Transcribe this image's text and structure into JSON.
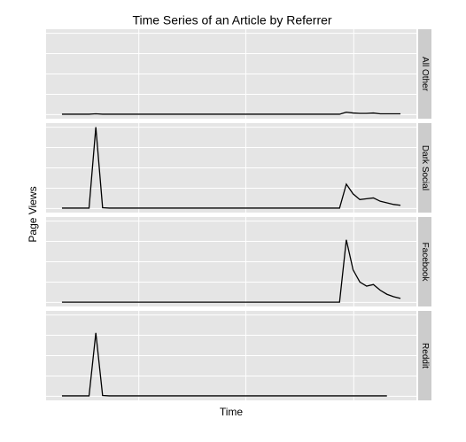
{
  "chart_data": {
    "type": "line",
    "title": "Time Series of an Article by Referrer",
    "x_label": "Time",
    "y_label": "Page Views",
    "facets": true,
    "grid": true,
    "x": [
      0,
      2,
      4,
      6,
      8,
      10,
      12,
      14,
      16,
      18,
      20,
      22,
      24,
      26,
      28,
      30,
      32,
      34,
      36,
      38,
      40,
      42,
      44,
      46,
      48,
      50,
      52,
      54,
      56,
      58,
      60,
      62,
      64,
      66,
      68,
      70,
      72,
      74,
      76,
      78,
      80,
      82,
      84,
      86,
      88,
      90,
      92,
      94,
      96,
      98,
      100
    ],
    "xlim": [
      -4.7,
      104.7
    ],
    "xticks": [
      22.7,
      54.3,
      86.2
    ],
    "ylim": [
      -5,
      105
    ],
    "yticks": [
      0,
      25,
      50,
      75,
      100
    ],
    "series": [
      {
        "name": "All Other",
        "color": "#000000",
        "values": [
          0.5,
          0.5,
          0.5,
          0.5,
          0.5,
          1,
          0.5,
          0.5,
          0.5,
          0.5,
          0.5,
          0.5,
          0.5,
          0.5,
          0.5,
          0.5,
          0.5,
          0.5,
          0.5,
          0.5,
          0.5,
          0.5,
          0.5,
          0.5,
          0.5,
          0.5,
          0.5,
          0.5,
          0.5,
          0.5,
          0.5,
          0.5,
          0.5,
          0.5,
          0.5,
          0.5,
          0.5,
          0.5,
          0.5,
          0.5,
          0.5,
          0.5,
          3,
          2,
          1.5,
          1.5,
          2,
          1,
          1,
          1,
          1
        ]
      },
      {
        "name": "Dark Social",
        "color": "#000000",
        "values": [
          0.5,
          0.5,
          0.5,
          0.5,
          0.5,
          100,
          1,
          0.5,
          0.5,
          0.5,
          0.5,
          0.5,
          0.5,
          0.5,
          0.5,
          0.5,
          0.5,
          0.5,
          0.5,
          0.5,
          0.5,
          0.5,
          0.5,
          0.5,
          0.5,
          0.5,
          0.5,
          0.5,
          0.5,
          0.5,
          0.5,
          0.5,
          0.5,
          0.5,
          0.5,
          0.5,
          0.5,
          0.5,
          0.5,
          0.5,
          0.5,
          0.5,
          30,
          18,
          11,
          12,
          13,
          9,
          7,
          5,
          4
        ]
      },
      {
        "name": "Facebook",
        "color": "#000000",
        "values": [
          0.3,
          0.3,
          0.3,
          0.3,
          0.3,
          0.3,
          0.3,
          0.3,
          0.3,
          0.3,
          0.3,
          0.3,
          0.3,
          0.3,
          0.3,
          0.3,
          0.3,
          0.3,
          0.3,
          0.3,
          0.3,
          0.3,
          0.3,
          0.3,
          0.3,
          0.3,
          0.3,
          0.3,
          0.3,
          0.3,
          0.3,
          0.3,
          0.3,
          0.3,
          0.3,
          0.3,
          0.3,
          0.3,
          0.3,
          0.3,
          0.3,
          0.3,
          77,
          40,
          25,
          20,
          22,
          15,
          10,
          7,
          5
        ]
      },
      {
        "name": "Reddit",
        "color": "#000000",
        "values": [
          0.5,
          0.5,
          0.5,
          0.5,
          0.5,
          78,
          1,
          0.5,
          0.5,
          0.5,
          0.5,
          0.5,
          0.5,
          0.5,
          0.5,
          0.5,
          0.5,
          0.5,
          0.5,
          0.5,
          0.5,
          0.5,
          0.5,
          0.5,
          0.5,
          0.5,
          0.5,
          0.5,
          0.5,
          0.5,
          0.5,
          0.5,
          0.5,
          0.5,
          0.5,
          0.5,
          0.5,
          0.5,
          0.5,
          0.5,
          0.5,
          0.5,
          0.5,
          0.5,
          0.5,
          0.5,
          0.5,
          0.5,
          0.5,
          null,
          null
        ]
      }
    ]
  }
}
